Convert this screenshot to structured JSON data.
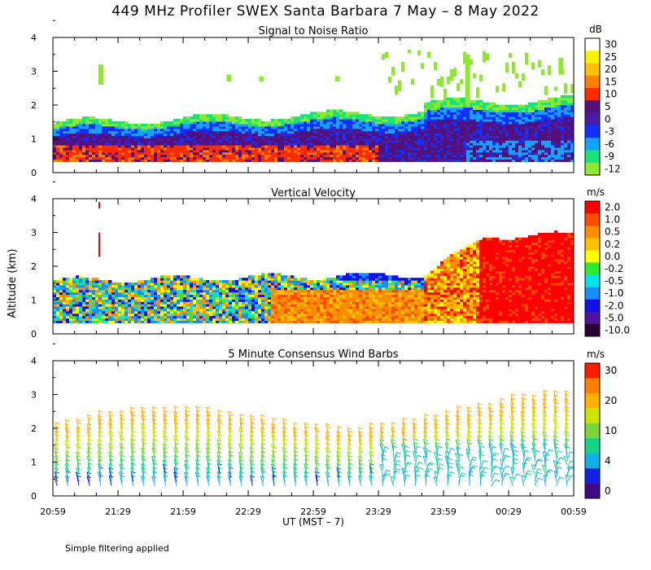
{
  "page_title": "449 MHz Profiler SWEX Santa Barbara  7 May –  8 May 2022",
  "footnote": "Simple filtering applied",
  "chart_data": [
    {
      "id": "snr",
      "type": "heatmap",
      "title": "Signal to Noise Ratio",
      "ylabel": "Altitude (km)",
      "ylim": [
        0,
        4
      ],
      "yticks": [
        "0",
        "1",
        "2",
        "3",
        "4"
      ],
      "xlim_minutes": [
        0,
        240
      ],
      "colorbar_unit": "dB",
      "colorbar": [
        {
          "label": "30",
          "color": "#ffffff"
        },
        {
          "label": "25",
          "color": "#fff200"
        },
        {
          "label": "20",
          "color": "#ffc000"
        },
        {
          "label": "15",
          "color": "#ff7e00"
        },
        {
          "label": "10",
          "color": "#ff2a00"
        },
        {
          "label": "5",
          "color": "#52107a"
        },
        {
          "label": "0",
          "color": "#4a1aa6"
        },
        {
          "label": "-3",
          "color": "#1030ff"
        },
        {
          "label": "-6",
          "color": "#12a3ff"
        },
        {
          "label": "-9",
          "color": "#18e27a"
        },
        {
          "label": "-12",
          "color": "#8ee82e"
        }
      ]
    },
    {
      "id": "velocity",
      "type": "heatmap",
      "title": "Vertical Velocity",
      "ylim": [
        0,
        4
      ],
      "yticks": [
        "0",
        "1",
        "2",
        "3",
        "4"
      ],
      "colorbar_unit": "m/s",
      "colorbar": [
        {
          "label": "2.0",
          "color": "#ff0000"
        },
        {
          "label": "1.0",
          "color": "#ff4a00"
        },
        {
          "label": "0.5",
          "color": "#ff8c00"
        },
        {
          "label": "0.2",
          "color": "#ffc000"
        },
        {
          "label": "0.0",
          "color": "#ffff00"
        },
        {
          "label": "-0.2",
          "color": "#2ee82e"
        },
        {
          "label": "-0.5",
          "color": "#00e5e5"
        },
        {
          "label": "-1.0",
          "color": "#1a8cff"
        },
        {
          "label": "-2.0",
          "color": "#1010e8"
        },
        {
          "label": "-5.0",
          "color": "#5010a0"
        },
        {
          "label": "-10.0",
          "color": "#2a0033"
        }
      ]
    },
    {
      "id": "barbs",
      "type": "scatter",
      "title": "5 Minute Consensus Wind Barbs",
      "ylim": [
        0,
        4
      ],
      "yticks": [
        "0",
        "1",
        "2",
        "3",
        "4"
      ],
      "xlabel": "UT  (MST – 7)",
      "xticks": [
        "20:59",
        "21:29",
        "21:59",
        "22:29",
        "22:59",
        "23:29",
        "23:59",
        "00:29",
        "00:59"
      ],
      "colorbar_unit": "m/s",
      "colorbar": [
        {
          "label": "30",
          "color": "#ff1a00"
        },
        {
          "label": "",
          "color": "#ff8000"
        },
        {
          "label": "20",
          "color": "#ffb000"
        },
        {
          "label": "",
          "color": "#c8e600"
        },
        {
          "label": "10",
          "color": "#7ad63a"
        },
        {
          "label": "",
          "color": "#14d48a"
        },
        {
          "label": "4",
          "color": "#12b0e8"
        },
        {
          "label": "",
          "color": "#1020e8"
        },
        {
          "label": "0",
          "color": "#400a80"
        }
      ]
    }
  ]
}
